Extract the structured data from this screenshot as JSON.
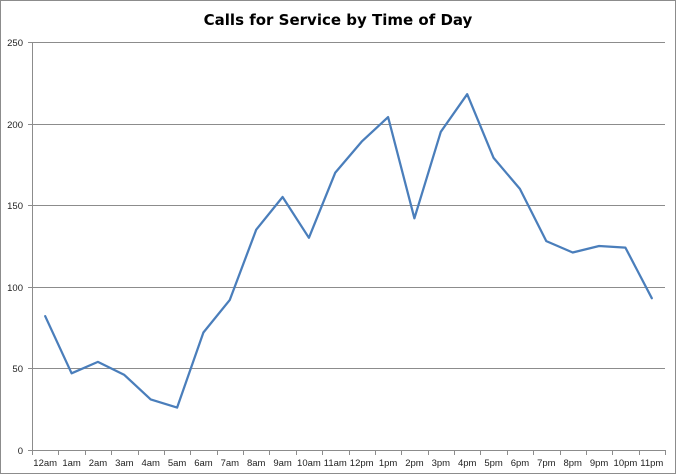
{
  "chart_data": {
    "type": "line",
    "title": "Calls for Service by Time of Day",
    "xlabel": "",
    "ylabel": "",
    "categories": [
      "12am",
      "1am",
      "2am",
      "3am",
      "4am",
      "5am",
      "6am",
      "7am",
      "8am",
      "9am",
      "10am",
      "11am",
      "12pm",
      "1pm",
      "2pm",
      "3pm",
      "4pm",
      "5pm",
      "6pm",
      "7pm",
      "8pm",
      "9pm",
      "10pm",
      "11pm"
    ],
    "series": [
      {
        "values": [
          82,
          47,
          54,
          46,
          31,
          26,
          72,
          92,
          135,
          155,
          130,
          170,
          189,
          204,
          142,
          195,
          218,
          179,
          160,
          128,
          121,
          125,
          124,
          93
        ]
      }
    ],
    "ylim": [
      0,
      250
    ],
    "yticks": [
      0,
      50,
      100,
      150,
      200,
      250
    ],
    "grid": true,
    "legend": "none",
    "colors": {
      "line": "#4a7ebb",
      "grid": "#8c8c8c",
      "axis": "#8c8c8c"
    }
  }
}
